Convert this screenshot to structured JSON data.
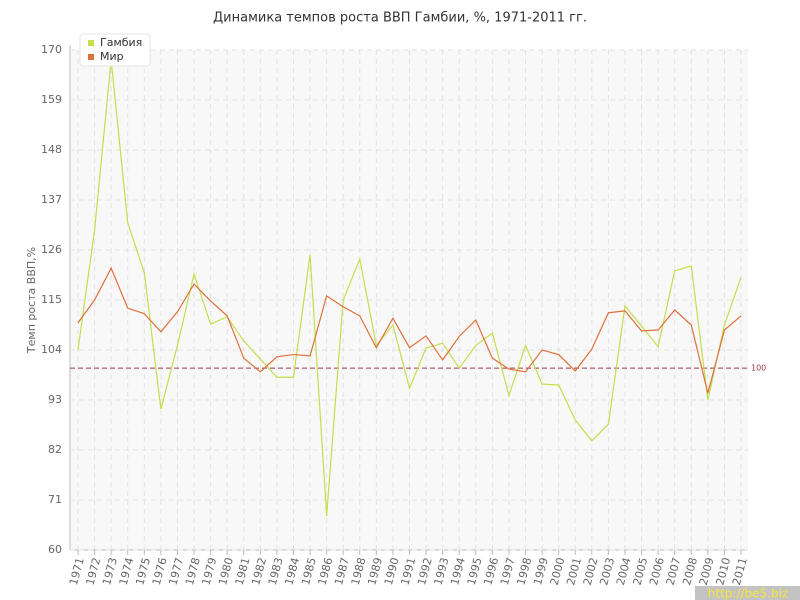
{
  "chart_data": {
    "type": "line",
    "title": "Динамика темпов роста ВВП Гамбии, %, 1971-2011 гг.",
    "y_label": "Темп роста ВВП,%",
    "categories": [
      "1971",
      "1972",
      "1973",
      "1974",
      "1975",
      "1976",
      "1977",
      "1978",
      "1979",
      "1980",
      "1981",
      "1982",
      "1983",
      "1984",
      "1985",
      "1986",
      "1987",
      "1988",
      "1989",
      "1990",
      "1991",
      "1992",
      "1993",
      "1994",
      "1995",
      "1996",
      "1997",
      "1998",
      "1999",
      "2000",
      "2001",
      "2002",
      "2003",
      "2004",
      "2005",
      "2006",
      "2007",
      "2008",
      "2009",
      "2010",
      "2011"
    ],
    "series": [
      {
        "name": "Гамбия",
        "color": "#c3df4c",
        "values": [
          104,
          130.4,
          167.8,
          132,
          121,
          91,
          105,
          120.7,
          109.7,
          111.3,
          106,
          102,
          98,
          98,
          125,
          67.5,
          115,
          124,
          105,
          109.5,
          95.6,
          104.4,
          105.5,
          100,
          105,
          107.7,
          94,
          105,
          96.5,
          96.3,
          88.6,
          84,
          87.7,
          113.7,
          109.3,
          104.7,
          121.4,
          122.5,
          93,
          109.5,
          120
        ]
      },
      {
        "name": "Мир",
        "color": "#e0703c",
        "values": [
          110,
          115,
          122,
          113.2,
          112,
          108,
          112.4,
          118.5,
          114.8,
          111.5,
          102.2,
          99.2,
          102.5,
          103,
          102.7,
          115.9,
          113.5,
          111.5,
          104.5,
          111,
          104.5,
          107.1,
          101.8,
          107,
          110.6,
          102.2,
          99.8,
          99.2,
          104,
          103,
          99.4,
          104.2,
          112.2,
          112.6,
          108.2,
          108.4,
          112.8,
          109.5,
          94.5,
          108.4,
          111.5
        ]
      }
    ],
    "ylim": [
      60,
      170
    ],
    "yticks": [
      60,
      71,
      82,
      93,
      104,
      115,
      126,
      137,
      148,
      159,
      170
    ],
    "grid": true,
    "reference_line": {
      "value": 100,
      "color": "#9b3a4a"
    },
    "legend": "top-left"
  },
  "watermark": "http://be5.biz"
}
